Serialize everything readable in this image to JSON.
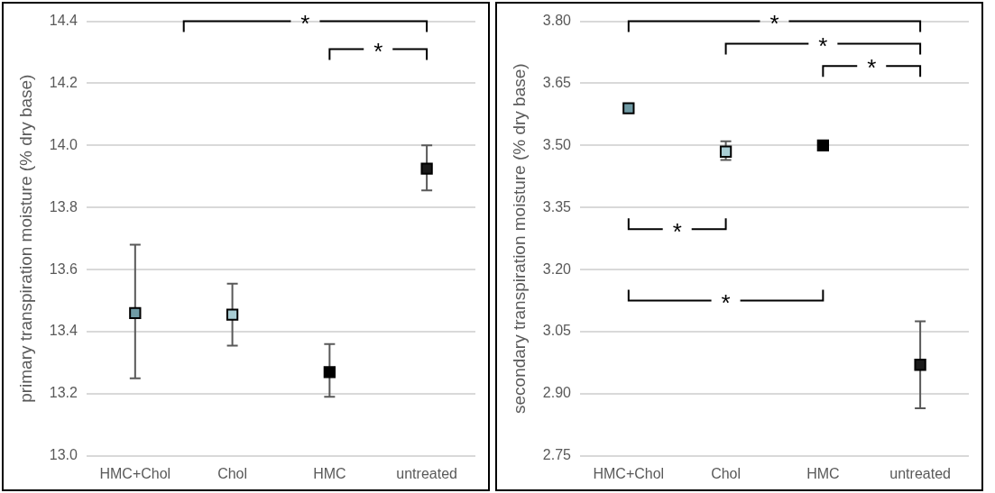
{
  "chart_data": [
    {
      "type": "scatter",
      "ylabel": "primary transpiration moisture (% dry base)",
      "categories": [
        "HMC+Chol",
        "Chol",
        "HMC",
        "untreated"
      ],
      "values": [
        13.46,
        13.455,
        13.27,
        13.925
      ],
      "errors": [
        [
          13.25,
          13.68
        ],
        [
          13.355,
          13.555
        ],
        [
          13.19,
          13.36
        ],
        [
          13.855,
          14.0
        ]
      ],
      "colors": [
        "#6f9aa4",
        "#a9cdd4",
        "#000000",
        "#1a1a1a"
      ],
      "marker": "square",
      "grid": "y",
      "ylim": [
        13.0,
        14.4
      ],
      "yticks": [
        {
          "value": 13.0,
          "label": "13.0"
        },
        {
          "value": 13.2,
          "label": "13.2"
        },
        {
          "value": 13.4,
          "label": "13.4"
        },
        {
          "value": 13.6,
          "label": "13.6"
        },
        {
          "value": 13.8,
          "label": "13.8"
        },
        {
          "value": 14.0,
          "label": "14.0"
        },
        {
          "value": 14.2,
          "label": "14.2"
        },
        {
          "value": 14.4,
          "label": "14.4"
        }
      ],
      "annotations": [
        "*",
        "*"
      ]
    },
    {
      "type": "scatter",
      "ylabel": "secondary transpiration moisture (% dry base)",
      "categories": [
        "HMC+Chol",
        "Chol",
        "HMC",
        "untreated"
      ],
      "values": [
        3.59,
        3.485,
        3.5,
        2.97
      ],
      "errors": [
        null,
        [
          3.465,
          3.51
        ],
        null,
        [
          2.865,
          3.075
        ]
      ],
      "colors": [
        "#6f9aa4",
        "#a9cdd4",
        "#000000",
        "#1a1a1a"
      ],
      "marker": "square",
      "grid": "y",
      "ylim": [
        2.75,
        3.8
      ],
      "yticks": [
        {
          "value": 2.75,
          "label": "2.75"
        },
        {
          "value": 2.9,
          "label": "2.90"
        },
        {
          "value": 3.05,
          "label": "3.05"
        },
        {
          "value": 3.2,
          "label": "3.20"
        },
        {
          "value": 3.35,
          "label": "3.35"
        },
        {
          "value": 3.5,
          "label": "3.50"
        },
        {
          "value": 3.65,
          "label": "3.65"
        },
        {
          "value": 3.8,
          "label": "3.80"
        }
      ],
      "annotations": [
        "*",
        "*",
        "*",
        "*",
        "*"
      ]
    }
  ]
}
